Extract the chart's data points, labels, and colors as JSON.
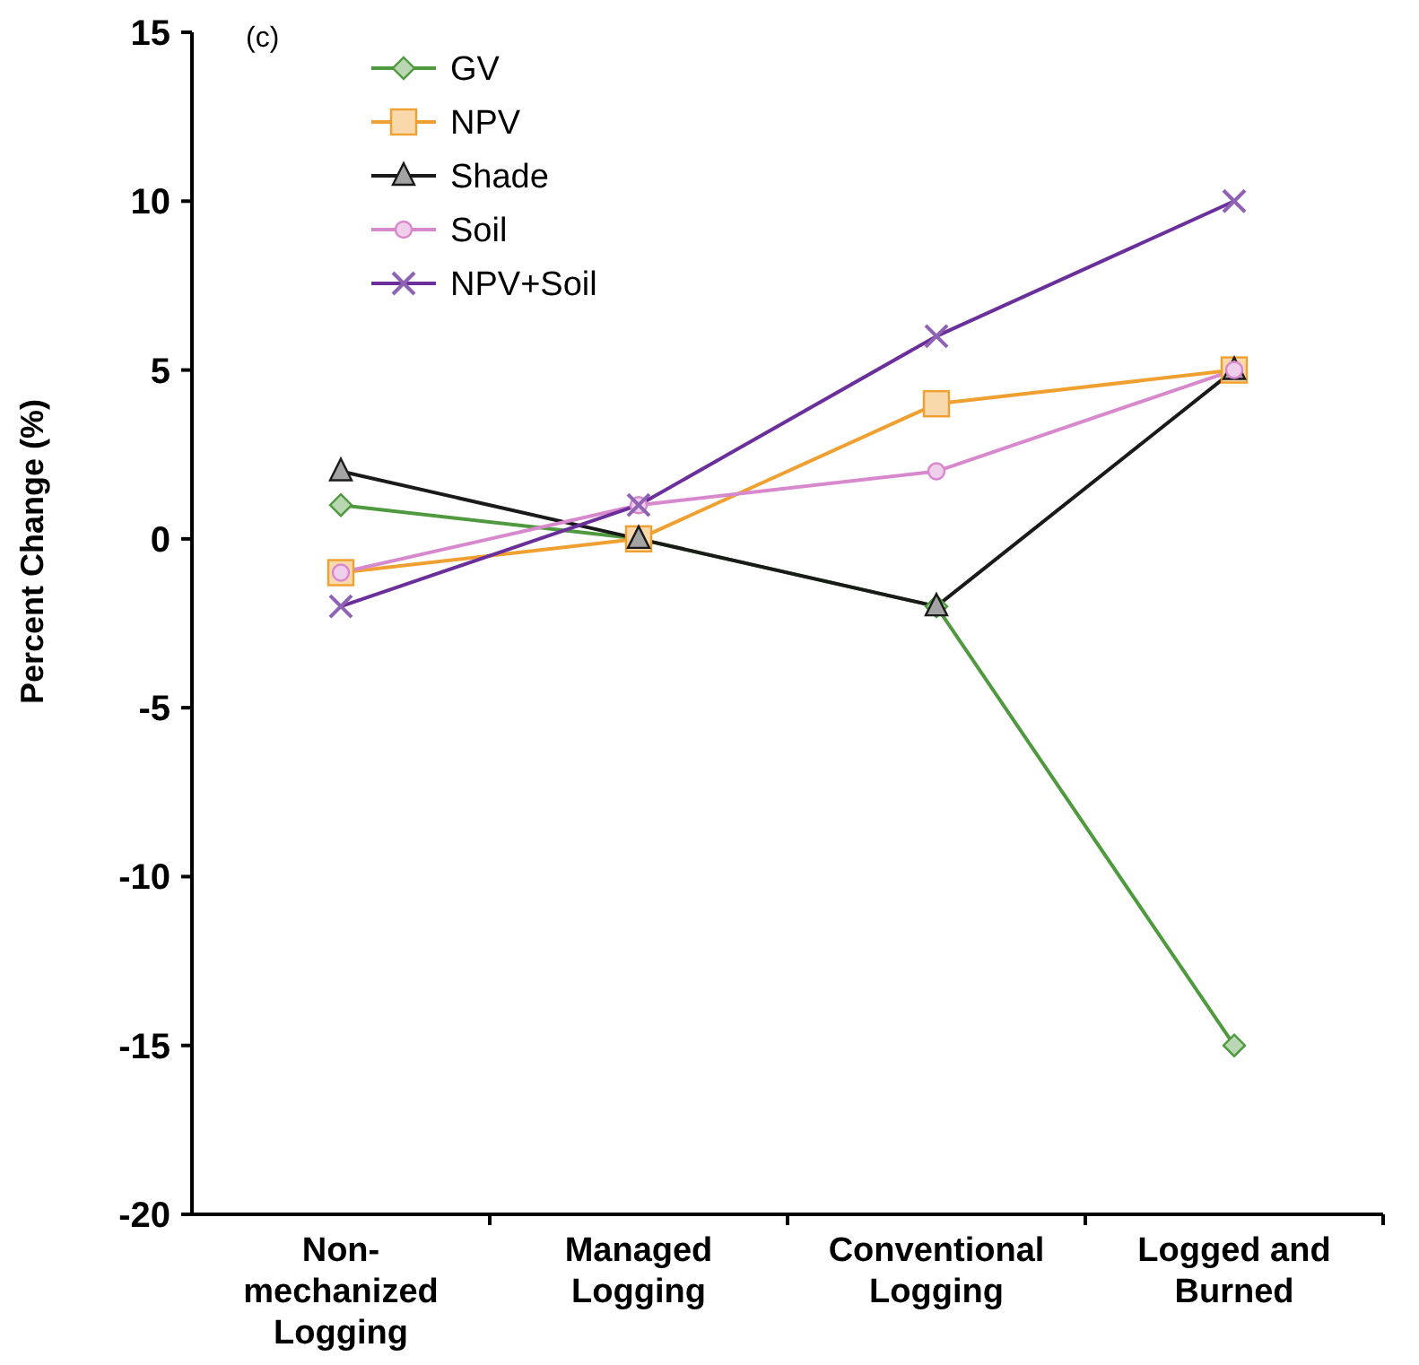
{
  "chart_data": {
    "type": "line",
    "ylabel": "Percent  Change (%)",
    "annotations": [
      "(c)"
    ],
    "categories": [
      "Non-\nmechanized\nLogging",
      "Managed\nLogging",
      "Conventional\nLogging",
      "Logged and\nBurned"
    ],
    "series": [
      {
        "name": "GV",
        "color": "#4f9a3f",
        "marker": "diamond",
        "values": [
          1,
          0,
          -2,
          -15
        ]
      },
      {
        "name": "NPV",
        "color": "#f0a030",
        "marker": "square",
        "values": [
          -1,
          0,
          4,
          5
        ]
      },
      {
        "name": "Shade",
        "color": "#1a1a1a",
        "marker": "triangle",
        "values": [
          2,
          0,
          -2,
          5
        ]
      },
      {
        "name": "Soil",
        "color": "#d888cc",
        "marker": "circle",
        "values": [
          -1,
          1,
          2,
          5
        ]
      },
      {
        "name": "NPV+Soil",
        "color": "#6a2f9a",
        "marker": "cross",
        "values": [
          -2,
          1,
          6,
          10
        ]
      }
    ],
    "ylim": [
      -20,
      15
    ],
    "yticks": [
      -20,
      -15,
      -10,
      -5,
      0,
      5,
      10,
      15
    ],
    "grid": false,
    "legend": "top left",
    "line_style": "solid"
  }
}
